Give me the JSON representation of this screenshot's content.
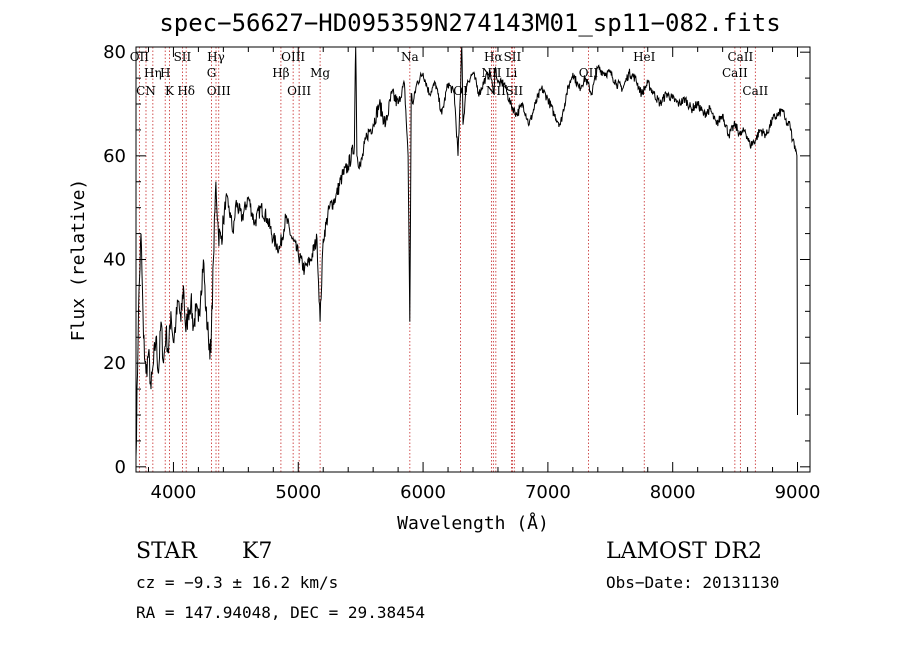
{
  "figure": {
    "title": "spec−56627−HD095359N274143M01_sp11−082.fits",
    "info": {
      "class_label": "STAR",
      "subclass": "K7",
      "survey": "LAMOST DR2",
      "cz": "cz = −9.3 ± 16.2 km/s",
      "obs_date": "Obs−Date: 20131130",
      "coords": "RA = 147.94048, DEC =  29.38454"
    }
  },
  "chart_data": {
    "type": "line",
    "title": "spec−56627−HD095359N274143M01_sp11−082.fits",
    "xlabel": "Wavelength (Å)",
    "ylabel": "Flux (relative)",
    "xlim": [
      3700,
      9100
    ],
    "ylim": [
      -1,
      81
    ],
    "grid": false,
    "x_ticks": [
      4000,
      5000,
      6000,
      7000,
      8000,
      9000
    ],
    "y_ticks": [
      0,
      20,
      40,
      60,
      80
    ],
    "line_color": "#000000",
    "marker_color": "#c62828",
    "spectral_lines": [
      {
        "label": "OII",
        "wl": 3727,
        "row": 0
      },
      {
        "label": "Hη",
        "wl": 3835,
        "row": 1
      },
      {
        "label": "CN",
        "wl": 3780,
        "row": 2
      },
      {
        "label": "H",
        "wl": 3934,
        "row": 1
      },
      {
        "label": "K",
        "wl": 3968,
        "row": 2
      },
      {
        "label": "SII",
        "wl": 4072,
        "row": 0
      },
      {
        "label": "Hδ",
        "wl": 4102,
        "row": 2
      },
      {
        "label": "Hγ",
        "wl": 4341,
        "row": 0
      },
      {
        "label": "G",
        "wl": 4305,
        "row": 1
      },
      {
        "label": "OIII",
        "wl": 4363,
        "row": 2
      },
      {
        "label": "OIII",
        "wl": 4959,
        "row": 0
      },
      {
        "label": "Hβ",
        "wl": 4861,
        "row": 1
      },
      {
        "label": "OIII",
        "wl": 5007,
        "row": 2
      },
      {
        "label": "Mg",
        "wl": 5175,
        "row": 1
      },
      {
        "label": "Na",
        "wl": 5894,
        "row": 0
      },
      {
        "label": "OI",
        "wl": 6300,
        "row": 2
      },
      {
        "label": "Hα",
        "wl": 6563,
        "row": 0
      },
      {
        "label": "NII",
        "wl": 6548,
        "row": 1
      },
      {
        "label": "NII",
        "wl": 6583,
        "row": 2
      },
      {
        "label": "SII",
        "wl": 6716,
        "row": 0
      },
      {
        "label": "Li",
        "wl": 6708,
        "row": 1
      },
      {
        "label": "SII",
        "wl": 6731,
        "row": 2
      },
      {
        "label": "OII",
        "wl": 7325,
        "row": 1
      },
      {
        "label": "HeI",
        "wl": 7772,
        "row": 0
      },
      {
        "label": "CaII",
        "wl": 8542,
        "row": 0
      },
      {
        "label": "CaII",
        "wl": 8498,
        "row": 1
      },
      {
        "label": "CaII",
        "wl": 8662,
        "row": 2
      }
    ],
    "series": [
      {
        "x": [
          3700,
          3720,
          3740,
          3760,
          3780,
          3800,
          3820,
          3840,
          3860,
          3880,
          3900,
          3920,
          3940,
          3960,
          3980,
          4000,
          4020,
          4040,
          4060,
          4080,
          4100,
          4120,
          4140,
          4160,
          4180,
          4200,
          4220,
          4240,
          4260,
          4280,
          4300,
          4320,
          4340,
          4360,
          4380,
          4400,
          4420,
          4440,
          4460,
          4480,
          4500,
          4550,
          4600,
          4650,
          4700,
          4750,
          4800,
          4850,
          4900,
          4950,
          5000,
          5050,
          5100,
          5150,
          5175,
          5200,
          5250,
          5300,
          5350,
          5400,
          5450,
          5460,
          5470,
          5500,
          5550,
          5600,
          5650,
          5700,
          5750,
          5800,
          5850,
          5880,
          5894,
          5905,
          5920,
          5950,
          6000,
          6050,
          6100,
          6150,
          6200,
          6250,
          6280,
          6300,
          6310,
          6320,
          6350,
          6400,
          6450,
          6500,
          6540,
          6563,
          6580,
          6600,
          6650,
          6700,
          6750,
          6800,
          6850,
          6900,
          6950,
          7000,
          7050,
          7100,
          7150,
          7200,
          7250,
          7300,
          7350,
          7400,
          7450,
          7500,
          7550,
          7600,
          7650,
          7700,
          7750,
          7800,
          7850,
          7900,
          7950,
          8000,
          8050,
          8100,
          8150,
          8200,
          8250,
          8300,
          8350,
          8400,
          8450,
          8498,
          8542,
          8580,
          8620,
          8662,
          8700,
          8750,
          8800,
          8850,
          8880,
          8900,
          8920,
          8940,
          8960,
          8980,
          8995,
          9000
        ],
        "y": [
          2,
          30,
          45,
          25,
          18,
          22,
          15,
          20,
          25,
          18,
          28,
          20,
          26,
          22,
          30,
          24,
          28,
          32,
          28,
          35,
          26,
          30,
          32,
          27,
          30,
          28,
          34,
          40,
          30,
          25,
          22,
          40,
          55,
          45,
          44,
          47,
          52,
          50,
          48,
          45,
          51,
          48,
          52,
          47,
          50,
          48,
          44,
          42,
          48,
          44,
          41,
          38,
          40,
          44,
          28,
          44,
          50,
          52,
          56,
          58,
          62,
          85,
          60,
          58,
          64,
          66,
          70,
          66,
          72,
          70,
          74,
          60,
          28,
          72,
          70,
          74,
          76,
          72,
          74,
          68,
          74,
          72,
          60,
          72,
          84,
          66,
          74,
          76,
          72,
          75,
          76,
          72,
          77,
          74,
          74,
          70,
          68,
          70,
          66,
          70,
          73,
          71,
          68,
          66,
          72,
          76,
          73,
          75,
          72,
          77,
          76,
          76,
          74,
          73,
          76,
          75,
          72,
          74,
          72,
          70,
          72,
          71,
          70,
          71,
          69,
          70,
          68,
          69,
          66,
          68,
          64,
          66,
          64,
          65,
          62,
          63,
          65,
          64,
          67,
          68,
          69,
          67,
          66,
          66,
          63,
          62,
          60,
          10
        ]
      }
    ]
  }
}
